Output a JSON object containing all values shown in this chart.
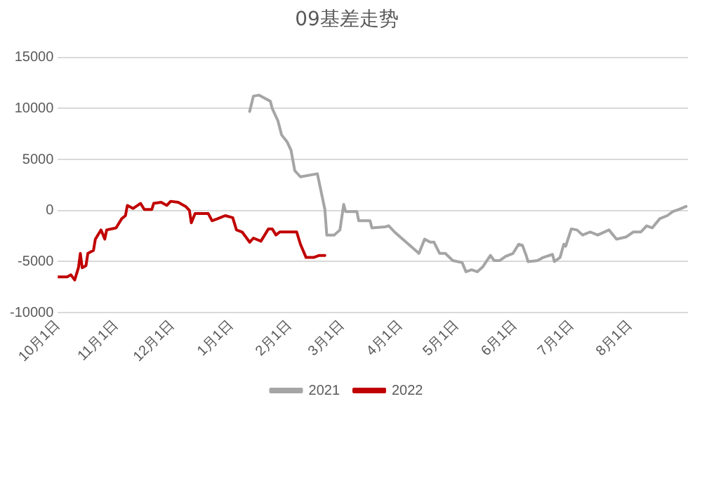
{
  "chart_data": {
    "type": "line",
    "title": "09基差走势",
    "xlim": [
      "2020-10-01",
      "2021-09-01"
    ],
    "xticks": [
      {
        "value": "2020-10-01",
        "label": "10月1日"
      },
      {
        "value": "2020-11-01",
        "label": "11月1日"
      },
      {
        "value": "2020-12-01",
        "label": "12月1日"
      },
      {
        "value": "2021-01-01",
        "label": "1月1日"
      },
      {
        "value": "2021-02-01",
        "label": "2月1日"
      },
      {
        "value": "2021-03-01",
        "label": "3月1日"
      },
      {
        "value": "2021-04-01",
        "label": "4月1日"
      },
      {
        "value": "2021-05-01",
        "label": "5月1日"
      },
      {
        "value": "2021-06-01",
        "label": "6月1日"
      },
      {
        "value": "2021-07-01",
        "label": "7月1日"
      },
      {
        "value": "2021-08-01",
        "label": "8月1日"
      }
    ],
    "ylim": [
      -10000,
      15000
    ],
    "yticks": [
      -10000,
      -5000,
      0,
      5000,
      10000,
      15000
    ],
    "grid": "y",
    "legend": "bottom",
    "marker": "none",
    "line_style": "solid",
    "series": [
      {
        "name": "2021",
        "color": "#a5a5a5",
        "x": [
          "2021-01-11",
          "2021-01-13",
          "2021-01-16",
          "2021-01-20",
          "2021-01-22",
          "2021-01-23",
          "2021-01-26",
          "2021-01-28",
          "2021-01-31",
          "2021-02-02",
          "2021-02-04",
          "2021-02-07",
          "2021-02-16",
          "2021-02-20",
          "2021-02-21",
          "2021-02-25",
          "2021-02-28",
          "2021-03-02",
          "2021-03-03",
          "2021-03-09",
          "2021-03-10",
          "2021-03-16",
          "2021-03-17",
          "2021-03-24",
          "2021-03-26",
          "2021-03-29",
          "2021-04-11",
          "2021-04-14",
          "2021-04-17",
          "2021-04-19",
          "2021-04-22",
          "2021-04-25",
          "2021-04-29",
          "2021-05-04",
          "2021-05-06",
          "2021-05-09",
          "2021-05-12",
          "2021-05-15",
          "2021-05-19",
          "2021-05-21",
          "2021-05-24",
          "2021-05-27",
          "2021-05-31",
          "2021-06-03",
          "2021-06-05",
          "2021-06-07",
          "2021-06-08",
          "2021-06-13",
          "2021-06-16",
          "2021-06-21",
          "2021-06-22",
          "2021-06-25",
          "2021-06-27",
          "2021-06-28",
          "2021-07-01",
          "2021-07-04",
          "2021-07-07",
          "2021-07-11",
          "2021-07-15",
          "2021-07-21",
          "2021-07-25",
          "2021-07-30",
          "2021-08-03",
          "2021-08-07",
          "2021-08-10",
          "2021-08-13",
          "2021-08-17",
          "2021-08-21",
          "2021-08-24",
          "2021-08-27",
          "2021-08-31"
        ],
        "values": [
          9700,
          11200,
          11300,
          10900,
          10700,
          10000,
          8800,
          7400,
          6700,
          5900,
          3900,
          3300,
          3600,
          100,
          -2400,
          -2400,
          -1900,
          600,
          -100,
          -100,
          -1000,
          -1000,
          -1700,
          -1600,
          -1500,
          -2100,
          -4200,
          -2800,
          -3100,
          -3100,
          -4200,
          -4200,
          -4900,
          -5100,
          -6000,
          -5800,
          -6000,
          -5500,
          -4400,
          -4900,
          -4900,
          -4500,
          -4200,
          -3300,
          -3400,
          -4400,
          -5000,
          -4900,
          -4600,
          -4300,
          -5000,
          -4600,
          -3300,
          -3500,
          -1800,
          -1900,
          -2400,
          -2100,
          -2400,
          -1900,
          -2800,
          -2600,
          -2100,
          -2100,
          -1500,
          -1700,
          -800,
          -500,
          -100,
          100,
          400
        ]
      },
      {
        "name": "2022",
        "color": "#c00000",
        "x": [
          "2020-10-01",
          "2020-10-06",
          "2020-10-08",
          "2020-10-10",
          "2020-10-12",
          "2020-10-13",
          "2020-10-14",
          "2020-10-16",
          "2020-10-17",
          "2020-10-20",
          "2020-10-21",
          "2020-10-24",
          "2020-10-26",
          "2020-10-27",
          "2020-11-01",
          "2020-11-04",
          "2020-11-06",
          "2020-11-07",
          "2020-11-10",
          "2020-11-14",
          "2020-11-16",
          "2020-11-20",
          "2020-11-21",
          "2020-11-25",
          "2020-11-28",
          "2020-11-30",
          "2020-12-04",
          "2020-12-08",
          "2020-12-10",
          "2020-12-11",
          "2020-12-13",
          "2020-12-20",
          "2020-12-22",
          "2020-12-25",
          "2020-12-29",
          "2021-01-02",
          "2021-01-04",
          "2021-01-07",
          "2021-01-11",
          "2021-01-13",
          "2021-01-17",
          "2021-01-21",
          "2021-01-23",
          "2021-01-25",
          "2021-01-27",
          "2021-02-05",
          "2021-02-07",
          "2021-02-10",
          "2021-02-14",
          "2021-02-17",
          "2021-02-20"
        ],
        "values": [
          -6500,
          -6500,
          -6300,
          -6800,
          -5600,
          -4200,
          -5600,
          -5400,
          -4200,
          -3900,
          -2800,
          -1900,
          -2800,
          -1900,
          -1700,
          -800,
          -500,
          500,
          200,
          700,
          100,
          100,
          700,
          800,
          500,
          900,
          800,
          400,
          0,
          -1200,
          -300,
          -300,
          -1000,
          -800,
          -500,
          -700,
          -1900,
          -2100,
          -3100,
          -2700,
          -3000,
          -1800,
          -1800,
          -2400,
          -2100,
          -2100,
          -3300,
          -4600,
          -4600,
          -4400,
          -4400
        ]
      }
    ]
  }
}
